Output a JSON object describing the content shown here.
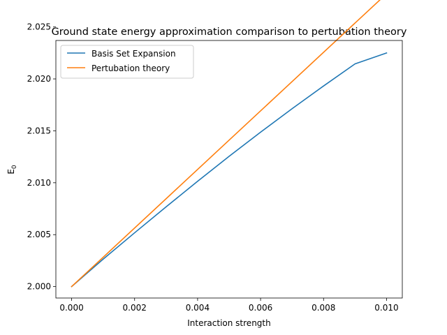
{
  "chart_data": {
    "type": "line",
    "title": "Ground state energy approximation comparison to pertubation theory",
    "xlabel": "Interaction strength",
    "ylabel_main": "E",
    "ylabel_sub": "0",
    "xlim": [
      -0.0005,
      0.0105
    ],
    "ylim": [
      1.9989,
      2.0237
    ],
    "xticks": [
      0.0,
      0.002,
      0.004,
      0.006,
      0.008,
      0.01
    ],
    "xtick_labels": [
      "0.000",
      "0.002",
      "0.004",
      "0.006",
      "0.008",
      "0.010"
    ],
    "yticks": [
      2.0,
      2.005,
      2.01,
      2.015,
      2.02,
      2.025
    ],
    "ytick_labels": [
      "2.000",
      "2.005",
      "2.010",
      "2.015",
      "2.020",
      "2.025"
    ],
    "legend_position": "top-left",
    "grid": false,
    "series": [
      {
        "name": "Basis Set Expansion",
        "color": "#1f77b4",
        "x": [
          0.0,
          0.001,
          0.002,
          0.003,
          0.004,
          0.005,
          0.006,
          0.007,
          0.008,
          0.009,
          0.01
        ],
        "y": [
          2.0,
          2.00264,
          2.00518,
          2.00768,
          2.01014,
          2.01254,
          2.01487,
          2.01713,
          2.01932,
          2.02145,
          2.0225
        ]
      },
      {
        "name": "Pertubation theory",
        "color": "#ff7f0e",
        "x": [
          0.0,
          0.01
        ],
        "y": [
          2.0,
          2.0282
        ]
      }
    ]
  }
}
